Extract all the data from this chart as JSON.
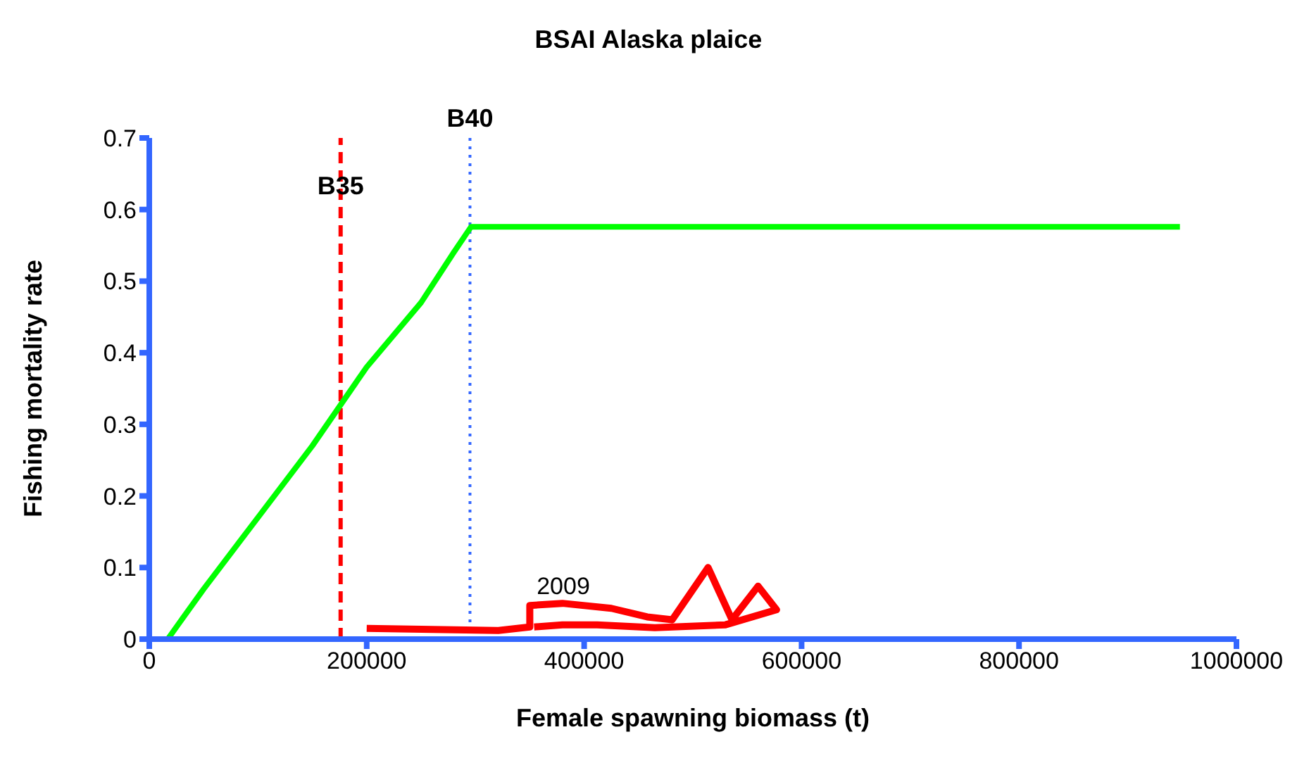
{
  "chart_data": {
    "type": "line",
    "title": "BSAI Alaska plaice",
    "xlabel": "Female spawning biomass (t)",
    "ylabel": "Fishing mortality rate",
    "xlim": [
      0,
      1000000
    ],
    "xticks": [
      0,
      200000,
      400000,
      600000,
      800000,
      1000000
    ],
    "ylim": [
      0,
      0.7
    ],
    "yticks": [
      0,
      0.1,
      0.2,
      0.3,
      0.4,
      0.5,
      0.6,
      0.7
    ],
    "marker": "none",
    "series": [
      {
        "color": "#00ff00",
        "x": [
          17000,
          50000,
          100000,
          150000,
          200000,
          250000,
          280000,
          296000,
          948000
        ],
        "values": [
          0,
          0.07,
          0.17,
          0.27,
          0.38,
          0.47,
          0.54,
          0.576,
          0.576
        ]
      },
      {
        "color": "#ff0000",
        "x": [
          200000,
          321000,
          350000,
          350000,
          380000,
          425000,
          458000,
          481000,
          514000,
          536000,
          560000,
          577000,
          530000,
          465000,
          412000,
          380000,
          354000
        ],
        "values": [
          0.015,
          0.012,
          0.017,
          0.047,
          0.05,
          0.043,
          0.031,
          0.027,
          0.1,
          0.027,
          0.074,
          0.041,
          0.02,
          0.016,
          0.02,
          0.02,
          0.017
        ]
      }
    ],
    "ref_lines": [
      {
        "axis": "x",
        "value": 176000,
        "label": "B35",
        "color": "#ff0000",
        "line_style": "dashed"
      },
      {
        "axis": "x",
        "value": 295000,
        "label": "B40",
        "color": "#3366ff",
        "line_style": "dotted"
      }
    ],
    "annotations": [
      "2009"
    ]
  }
}
